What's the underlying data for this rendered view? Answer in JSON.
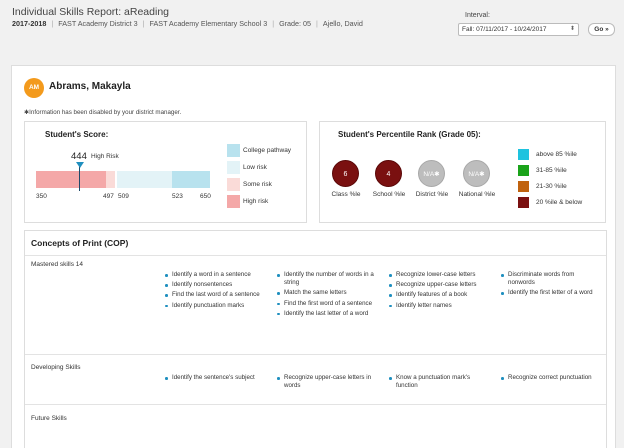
{
  "header": {
    "title": "Individual Skills Report: aReading",
    "year": "2017-2018",
    "district": "FAST Academy District 3",
    "school": "FAST Academy Elementary School 3",
    "grade": "Grade: 05",
    "teacher": "Ajello, David"
  },
  "interval": {
    "label": "Interval:",
    "selected": "Fall:  07/11/2017 - 10/24/2017",
    "go_label": "Go »"
  },
  "student": {
    "initials": "AM",
    "name": "Abrams, Makayla",
    "info_note": "✱Information has been disabled by your district manager."
  },
  "score": {
    "title": "Student's Score:",
    "value": "444",
    "risk_label": "High Risk",
    "ticks": [
      "350",
      "497",
      "509",
      "523",
      "650"
    ],
    "legend": [
      {
        "label": "College pathway",
        "color": "#b8e2ee"
      },
      {
        "label": "Low risk",
        "color": "#e3f3f7"
      },
      {
        "label": "Some risk",
        "color": "#fadbd8"
      },
      {
        "label": "High risk",
        "color": "#f4a8a8"
      }
    ]
  },
  "percentile": {
    "title": "Student's Percentile Rank (Grade 05):",
    "items": [
      {
        "value": "6",
        "label": "Class %le"
      },
      {
        "value": "4",
        "label": "School %le"
      },
      {
        "value": "N/A✱",
        "label": "District %le"
      },
      {
        "value": "N/A✱",
        "label": "National %le"
      }
    ],
    "legend": [
      {
        "label": "above 85 %ile",
        "color": "#1ec3df"
      },
      {
        "label": "31-85 %ile",
        "color": "#1aa31a"
      },
      {
        "label": "21-30 %ile",
        "color": "#c0620e"
      },
      {
        "label": "20 %ile & below",
        "color": "#7a1010"
      }
    ]
  },
  "cop": {
    "title": "Concepts of Print (COP)",
    "mastered_label": "Mastered skills 14",
    "developing_label": "Developing Skills",
    "future_label": "Future Skills",
    "mastered": [
      [
        "Identify a word in a sentence",
        "Identify nonsentences",
        "Find the last word of a sentence",
        "Identify punctuation marks"
      ],
      [
        "Identify the number of words in a string",
        "Match the same letters",
        "Find the first word of a sentence",
        "Identify the last letter of a word"
      ],
      [
        "Recognize lower-case letters",
        "Recognize upper-case letters",
        "Identify features of a book",
        "Identify letter names"
      ],
      [
        "Discriminate words from nonwords",
        "Identify the first letter of a word"
      ]
    ],
    "developing": [
      [
        "Identify the sentence's subject"
      ],
      [
        "Recognize upper-case letters in words"
      ],
      [
        "Know a punctuation mark's function"
      ],
      [
        "Recognize correct punctuation"
      ]
    ]
  }
}
